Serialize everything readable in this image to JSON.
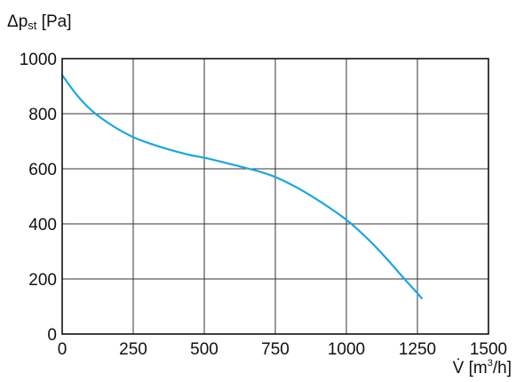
{
  "chart_data": {
    "type": "line",
    "title": "",
    "ylabel": {
      "prefix": "Δp",
      "sub": "st",
      "unit": " [Pa]"
    },
    "xlabel": {
      "symbol": "V̇",
      "unit_open": " [m",
      "unit_sup": "3",
      "unit_close": "/h]"
    },
    "xlim": [
      0,
      1500
    ],
    "ylim": [
      0,
      1000
    ],
    "x_ticks": [
      0,
      250,
      500,
      750,
      1000,
      1250,
      1500
    ],
    "y_ticks": [
      0,
      200,
      400,
      600,
      800,
      1000
    ],
    "grid": true,
    "legend": "none",
    "series": [
      {
        "color": "#1aa7e0",
        "points": [
          [
            0,
            940
          ],
          [
            50,
            870
          ],
          [
            100,
            815
          ],
          [
            150,
            775
          ],
          [
            200,
            742
          ],
          [
            250,
            715
          ],
          [
            300,
            695
          ],
          [
            350,
            678
          ],
          [
            400,
            663
          ],
          [
            450,
            650
          ],
          [
            500,
            640
          ],
          [
            550,
            628
          ],
          [
            600,
            615
          ],
          [
            650,
            602
          ],
          [
            700,
            588
          ],
          [
            750,
            570
          ],
          [
            800,
            546
          ],
          [
            850,
            518
          ],
          [
            900,
            486
          ],
          [
            950,
            452
          ],
          [
            1000,
            415
          ],
          [
            1050,
            370
          ],
          [
            1100,
            320
          ],
          [
            1150,
            264
          ],
          [
            1200,
            205
          ],
          [
            1250,
            148
          ],
          [
            1265,
            130
          ]
        ]
      }
    ]
  }
}
